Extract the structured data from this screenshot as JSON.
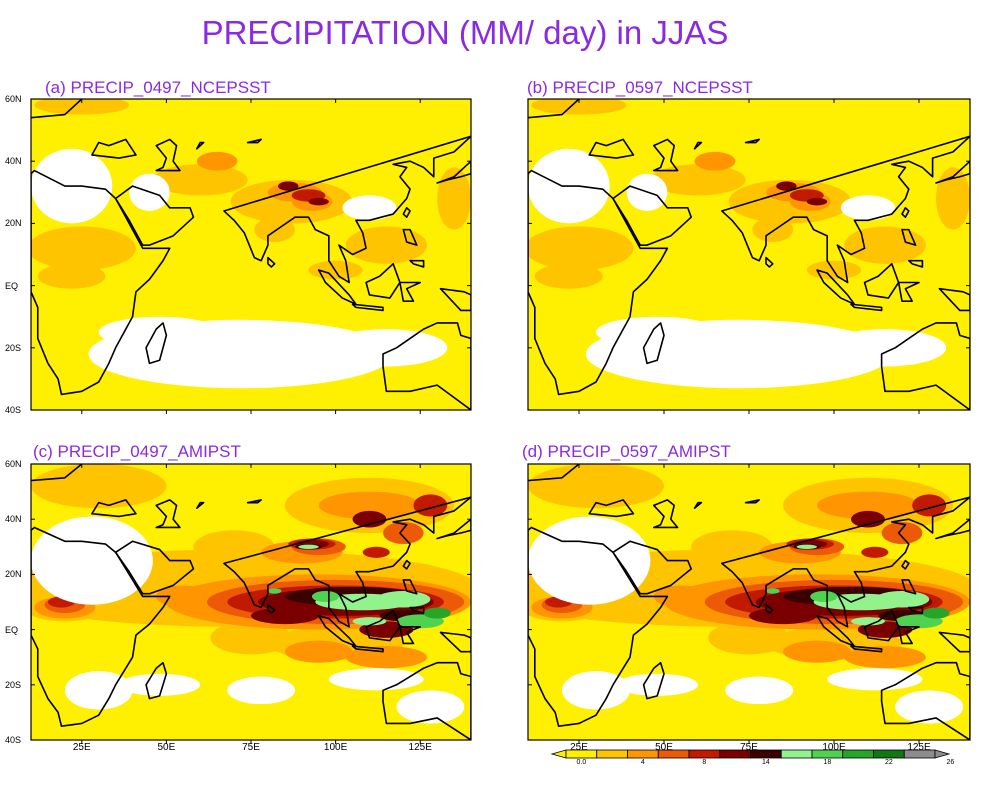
{
  "title": "PRECIPITATION (MM/ day) in JJAS",
  "panels": [
    {
      "label": "(a)  PRECIP_0497_NCEPSST",
      "forcing": "NCEPSST"
    },
    {
      "label": "(b) PRECIP_0597_NCEPSST",
      "forcing": "NCEPSST"
    },
    {
      "label": "(c) PRECIP_0497_AMIPST",
      "forcing": "AMIPST"
    },
    {
      "label": "(d) PRECIP_0597_AMIPST",
      "forcing": "AMIPST"
    }
  ],
  "lat_ticks": [
    "60N",
    "40N",
    "20N",
    "EQ",
    "20S",
    "40S"
  ],
  "lon_ticks": [
    "25E",
    "50E",
    "75E",
    "100E",
    "125E"
  ],
  "colorbar": {
    "labels": [
      "0.0",
      "4",
      "8",
      "14",
      "18",
      "22",
      "26"
    ],
    "colors": [
      "#ffffff",
      "#ffef00",
      "#ffc400",
      "#ff9500",
      "#ec5a08",
      "#c21a00",
      "#7a0000",
      "#3a0000",
      "#92f28c",
      "#4fd24f",
      "#28a428",
      "#127612",
      "#8c8c8c"
    ]
  },
  "palette": {
    "title": "#8a2be2",
    "coast": "#000000"
  }
}
